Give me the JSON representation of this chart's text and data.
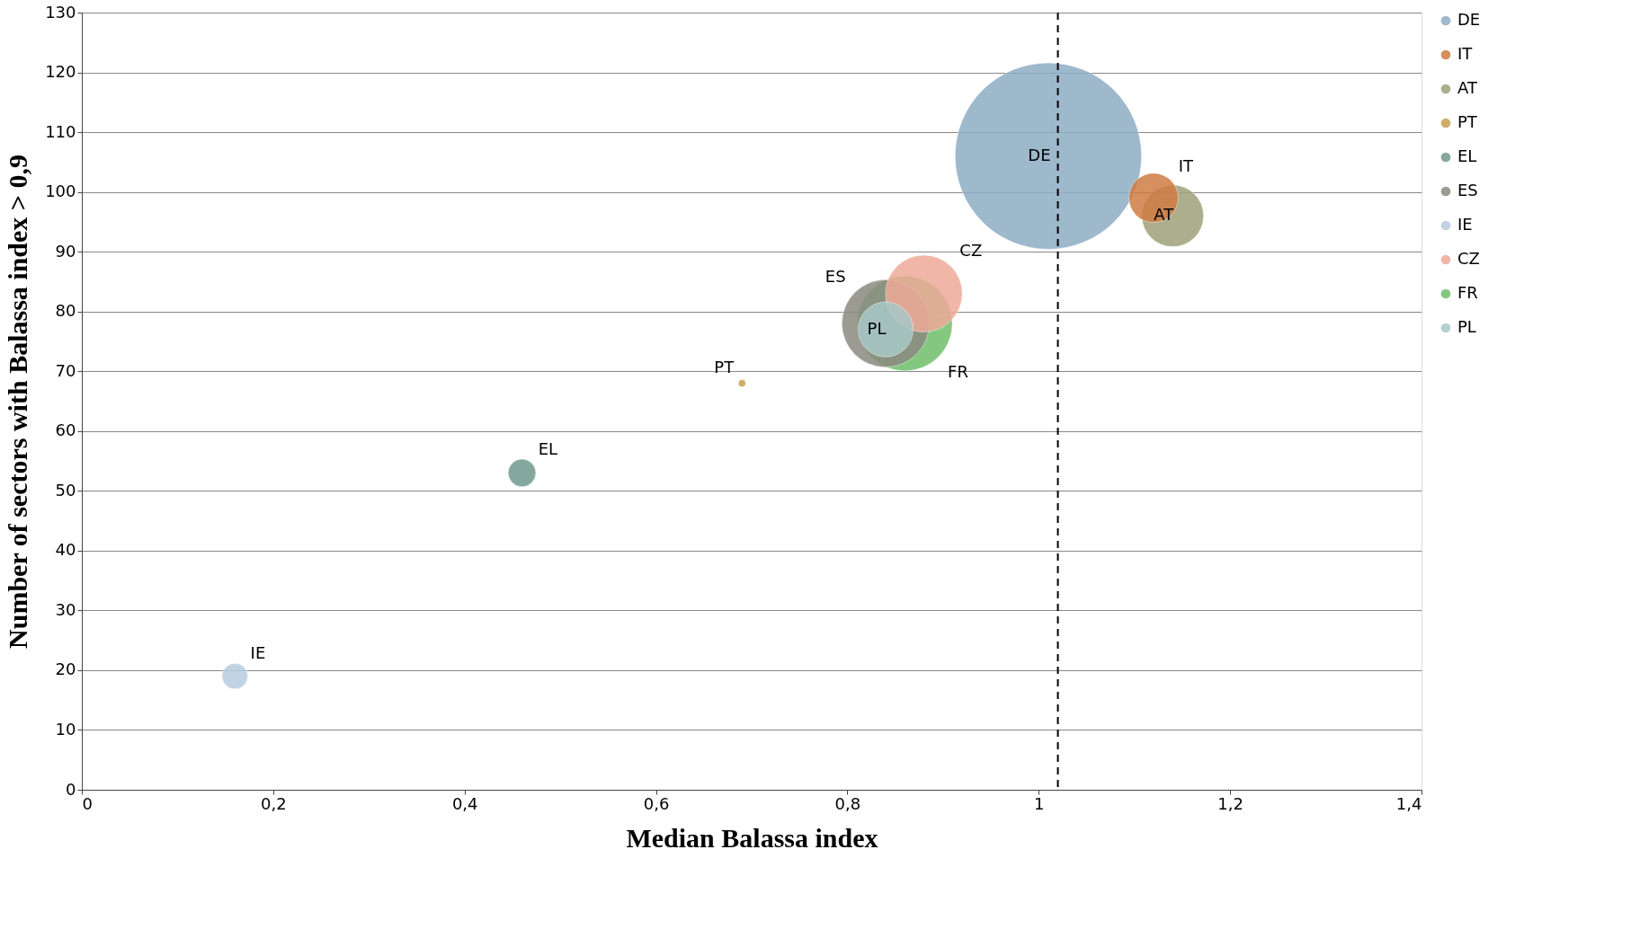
{
  "chart_data": {
    "type": "bubble",
    "xlabel": "Median Balassa index",
    "ylabel": "Number of sectors with Balassa index > 0,9",
    "xlim": [
      0,
      1.4
    ],
    "ylim": [
      0,
      130
    ],
    "xticks": [
      0,
      {
        "value": 0.2,
        "label": "0,2"
      },
      {
        "value": 0.4,
        "label": "0,4"
      },
      {
        "value": 0.6,
        "label": "0,6"
      },
      {
        "value": 0.8,
        "label": "0,8"
      },
      1,
      {
        "value": 1.2,
        "label": "1,2"
      },
      {
        "value": 1.4,
        "label": "1,4"
      }
    ],
    "yticks": [
      0,
      10,
      20,
      30,
      40,
      50,
      60,
      70,
      80,
      90,
      100,
      110,
      120,
      130
    ],
    "grid": "y",
    "legend": "right",
    "ref_lines": [
      {
        "axis": "x",
        "value": 1.02,
        "line_style": "dashed",
        "color": "#000000"
      }
    ],
    "series": [
      {
        "name": "DE",
        "color": "#8eacc4",
        "x": [
          1.01
        ],
        "values": [
          106
        ],
        "sizes": [
          1
        ]
      },
      {
        "name": "IT",
        "color": "#d07c42",
        "x": [
          1.12
        ],
        "values": [
          99
        ],
        "sizes": [
          0.07
        ]
      },
      {
        "name": "AT",
        "color": "#9ea07a",
        "x": [
          1.14
        ],
        "values": [
          96
        ],
        "sizes": [
          0.11
        ]
      },
      {
        "name": "PT",
        "color": "#c8a050",
        "x": [
          0.69
        ],
        "values": [
          68
        ],
        "sizes": [
          0.0015
        ]
      },
      {
        "name": "EL",
        "color": "#6f9a8c",
        "x": [
          0.46
        ],
        "values": [
          53
        ],
        "sizes": [
          0.022
        ]
      },
      {
        "name": "ES",
        "color": "#8a8a80",
        "x": [
          0.84
        ],
        "values": [
          78
        ],
        "sizes": [
          0.22
        ]
      },
      {
        "name": "IE",
        "color": "#b8cce0",
        "x": [
          0.16
        ],
        "values": [
          19
        ],
        "sizes": [
          0.019
        ]
      },
      {
        "name": "CZ",
        "color": "#eeaa98",
        "x": [
          0.88
        ],
        "values": [
          83
        ],
        "sizes": [
          0.17
        ]
      },
      {
        "name": "FR",
        "color": "#6fbf6a",
        "x": [
          0.86
        ],
        "values": [
          78
        ],
        "sizes": [
          0.26
        ]
      },
      {
        "name": "PL",
        "color": "#a8c8c8",
        "x": [
          0.84
        ],
        "values": [
          77
        ],
        "sizes": [
          0.087
        ]
      }
    ]
  }
}
